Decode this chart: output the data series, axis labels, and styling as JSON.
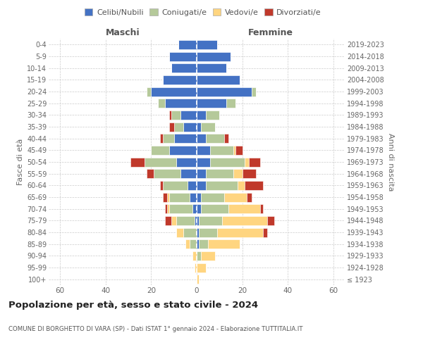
{
  "age_groups": [
    "100+",
    "95-99",
    "90-94",
    "85-89",
    "80-84",
    "75-79",
    "70-74",
    "65-69",
    "60-64",
    "55-59",
    "50-54",
    "45-49",
    "40-44",
    "35-39",
    "30-34",
    "25-29",
    "20-24",
    "15-19",
    "10-14",
    "5-9",
    "0-4"
  ],
  "birth_years": [
    "≤ 1923",
    "1924-1928",
    "1929-1933",
    "1934-1938",
    "1939-1943",
    "1944-1948",
    "1949-1953",
    "1954-1958",
    "1959-1963",
    "1964-1968",
    "1969-1973",
    "1974-1978",
    "1979-1983",
    "1984-1988",
    "1989-1993",
    "1994-1998",
    "1999-2003",
    "2004-2008",
    "2009-2013",
    "2014-2018",
    "2019-2023"
  ],
  "maschi": {
    "celibi": [
      0,
      0,
      0,
      0,
      0,
      1,
      2,
      3,
      4,
      7,
      9,
      12,
      10,
      6,
      7,
      14,
      20,
      15,
      11,
      12,
      8
    ],
    "coniugati": [
      0,
      0,
      0,
      3,
      6,
      8,
      10,
      9,
      11,
      12,
      14,
      8,
      5,
      4,
      4,
      3,
      2,
      0,
      0,
      0,
      0
    ],
    "vedovi": [
      0,
      1,
      2,
      2,
      3,
      2,
      1,
      1,
      0,
      0,
      0,
      0,
      0,
      0,
      0,
      0,
      0,
      0,
      0,
      0,
      0
    ],
    "divorziati": [
      0,
      0,
      0,
      0,
      0,
      3,
      1,
      2,
      1,
      3,
      6,
      0,
      1,
      2,
      1,
      0,
      0,
      0,
      0,
      0,
      0
    ]
  },
  "femmine": {
    "nubili": [
      0,
      0,
      0,
      1,
      1,
      1,
      2,
      2,
      4,
      4,
      6,
      6,
      4,
      2,
      4,
      13,
      24,
      19,
      13,
      15,
      9
    ],
    "coniugate": [
      0,
      0,
      2,
      4,
      8,
      10,
      12,
      10,
      14,
      12,
      15,
      10,
      8,
      6,
      6,
      4,
      2,
      0,
      0,
      0,
      0
    ],
    "vedove": [
      1,
      4,
      6,
      14,
      20,
      20,
      14,
      10,
      3,
      4,
      2,
      1,
      0,
      0,
      0,
      0,
      0,
      0,
      0,
      0,
      0
    ],
    "divorziate": [
      0,
      0,
      0,
      0,
      2,
      3,
      1,
      2,
      8,
      6,
      5,
      3,
      2,
      0,
      0,
      0,
      0,
      0,
      0,
      0,
      0
    ]
  },
  "colors": {
    "celibi": "#4472c4",
    "coniugati": "#b5c99a",
    "vedovi": "#ffd580",
    "divorziati": "#c0392b"
  },
  "xlim": 65,
  "title": "Popolazione per età, sesso e stato civile - 2024",
  "subtitle": "COMUNE DI BORGHETTO DI VARA (SP) - Dati ISTAT 1° gennaio 2024 - Elaborazione TUTTITALIA.IT",
  "legend_labels": [
    "Celibi/Nubili",
    "Coniugati/e",
    "Vedovi/e",
    "Divorziati/e"
  ]
}
